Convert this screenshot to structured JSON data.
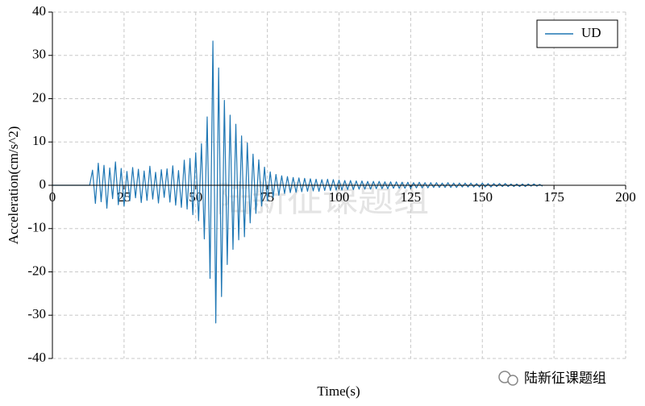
{
  "chart_data": {
    "type": "line",
    "xlabel": "Time(s)",
    "ylabel": "Acceleration(cm/s^2)",
    "xlim": [
      0,
      200
    ],
    "ylim": [
      -40,
      40
    ],
    "xticks": [
      0,
      25,
      50,
      75,
      100,
      125,
      150,
      175,
      200
    ],
    "yticks": [
      -40,
      -30,
      -20,
      -10,
      0,
      10,
      20,
      30,
      40
    ],
    "grid": true,
    "legend": "upper right",
    "watermark": "陆新征课题组",
    "source": "陆新征课题组",
    "x": [
      0,
      1,
      2,
      3,
      4,
      5,
      6,
      7,
      8,
      9,
      10,
      11,
      12,
      13,
      14,
      15,
      16,
      17,
      18,
      19,
      20,
      21,
      22,
      23,
      24,
      25,
      26,
      27,
      28,
      29,
      30,
      31,
      32,
      33,
      34,
      35,
      36,
      37,
      38,
      39,
      40,
      41,
      42,
      43,
      44,
      45,
      46,
      47,
      48,
      49,
      50,
      51,
      52,
      53,
      54,
      55,
      56,
      57,
      58,
      59,
      60,
      61,
      62,
      63,
      64,
      65,
      66,
      67,
      68,
      69,
      70,
      71,
      72,
      73,
      74,
      75,
      76,
      77,
      78,
      79,
      80,
      81,
      82,
      83,
      84,
      85,
      86,
      87,
      88,
      89,
      90,
      91,
      92,
      93,
      94,
      95,
      96,
      97,
      98,
      99,
      100,
      101,
      102,
      103,
      104,
      105,
      106,
      107,
      108,
      109,
      110,
      111,
      112,
      113,
      114,
      115,
      116,
      117,
      118,
      119,
      120,
      121,
      122,
      123,
      124,
      125,
      126,
      127,
      128,
      129,
      130,
      131,
      132,
      133,
      134,
      135,
      136,
      137,
      138,
      139,
      140,
      141,
      142,
      143,
      144,
      145,
      146,
      147,
      148,
      149,
      150,
      151,
      152,
      153,
      154,
      155,
      156,
      157,
      158,
      159,
      160,
      161,
      162,
      163,
      164,
      165,
      166,
      167,
      168,
      169,
      170,
      171
    ],
    "series": [
      {
        "name": "UD",
        "color": "#1f77b4",
        "values": [
          0,
          0,
          0,
          0,
          0,
          0,
          0,
          0,
          0,
          0,
          0,
          0,
          0,
          0,
          3.5,
          -4.2,
          5.1,
          -3.8,
          4.6,
          -5.3,
          4.0,
          -3.1,
          5.4,
          -4.5,
          3.9,
          -4.8,
          3.2,
          -3.6,
          4.1,
          -2.9,
          3.7,
          -4.0,
          3.3,
          -3.5,
          4.4,
          -3.2,
          3.0,
          -4.1,
          3.6,
          -2.8,
          3.8,
          -3.9,
          4.5,
          -4.6,
          3.4,
          -5.1,
          5.8,
          -5.5,
          6.2,
          -6.8,
          7.5,
          -8.2,
          9.6,
          -12.4,
          15.8,
          -21.5,
          33.3,
          -31.8,
          27.1,
          -25.7,
          19.6,
          -18.3,
          16.2,
          -14.8,
          14.1,
          -12.6,
          11.4,
          -11.9,
          9.8,
          -8.7,
          7.2,
          -6.5,
          5.9,
          -4.8,
          4.2,
          -3.6,
          3.1,
          -2.8,
          2.5,
          -2.3,
          2.2,
          -1.9,
          2.0,
          -1.7,
          1.8,
          -1.6,
          1.7,
          -1.5,
          1.6,
          -1.4,
          1.5,
          -1.3,
          1.4,
          -1.4,
          1.3,
          -1.2,
          1.4,
          -1.2,
          1.3,
          -1.1,
          1.2,
          -1.1,
          1.1,
          -1.0,
          1.1,
          -1.0,
          1.0,
          -0.9,
          1.0,
          -0.9,
          0.9,
          -0.9,
          0.9,
          -0.8,
          0.9,
          -0.8,
          0.8,
          -0.8,
          0.8,
          -0.7,
          0.8,
          -0.7,
          0.7,
          -0.7,
          0.7,
          -0.7,
          0.6,
          -0.6,
          0.7,
          -0.6,
          0.6,
          -0.6,
          0.6,
          -0.5,
          0.6,
          -0.5,
          0.5,
          -0.5,
          0.6,
          -0.5,
          0.5,
          -0.5,
          0.5,
          -0.4,
          0.5,
          -0.4,
          0.5,
          -0.4,
          0.4,
          -0.4,
          0.5,
          -0.4,
          0.4,
          -0.4,
          0.4,
          -0.3,
          0.4,
          -0.3,
          0.4,
          -0.3,
          0.3,
          -0.3,
          0.3,
          -0.3,
          0.3,
          -0.3,
          0.3,
          -0.2,
          0.3,
          -0.2,
          0.2,
          -0.2
        ]
      }
    ]
  }
}
